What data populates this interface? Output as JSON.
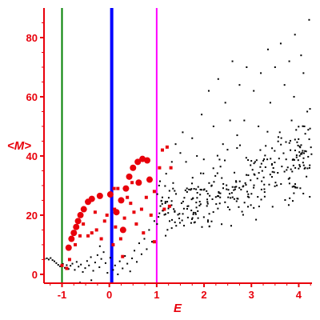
{
  "chart_data": {
    "type": "scatter",
    "title": "",
    "xlabel": "E",
    "ylabel": "<M>",
    "xlim": [
      -1.38,
      4.28
    ],
    "ylim": [
      -3,
      90
    ],
    "xticks": [
      -1,
      0,
      1,
      2,
      3,
      4
    ],
    "yticks": [
      0,
      20,
      40,
      60,
      80
    ],
    "grid": false,
    "legend": "none",
    "colors": {
      "axis": "#e8000b",
      "small_points": "#000000",
      "large_points": "#e8000b",
      "line_green": "#008000",
      "line_blue": "#0000ff",
      "line_magenta": "#ff00ff"
    },
    "vertical_lines": [
      {
        "x": -1.0,
        "color": "#008000",
        "weight": "thin"
      },
      {
        "x": 0.05,
        "color": "#0000ff",
        "weight": "thick"
      },
      {
        "x": 1.0,
        "color": "#ff00ff",
        "weight": "thin"
      }
    ],
    "red_circles": [
      [
        -0.86,
        9.0
      ],
      [
        -0.8,
        12.0
      ],
      [
        -0.75,
        14.0
      ],
      [
        -0.7,
        16.0
      ],
      [
        -0.66,
        18.0
      ],
      [
        -0.61,
        20.0
      ],
      [
        -0.54,
        22.0
      ],
      [
        -0.45,
        24.5
      ],
      [
        -0.37,
        25.5
      ],
      [
        -0.2,
        26.5
      ],
      [
        0.02,
        27.0
      ],
      [
        0.15,
        21.0
      ],
      [
        0.25,
        25.0
      ],
      [
        0.35,
        29.0
      ],
      [
        0.42,
        33.0
      ],
      [
        0.5,
        36.0
      ],
      [
        0.6,
        38.0
      ],
      [
        0.7,
        39.0
      ],
      [
        0.8,
        38.5
      ],
      [
        0.85,
        32.0
      ],
      [
        0.62,
        31.0
      ],
      [
        0.29,
        15.0
      ]
    ],
    "red_squares": [
      [
        -1.0,
        3.0
      ],
      [
        -0.9,
        2.0
      ],
      [
        -0.84,
        5.0
      ],
      [
        -0.72,
        10.0
      ],
      [
        -0.62,
        13.0
      ],
      [
        -0.55,
        17.0
      ],
      [
        -0.45,
        13.0
      ],
      [
        -0.37,
        14.0
      ],
      [
        -0.27,
        15.0
      ],
      [
        -0.17,
        12.0
      ],
      [
        -0.1,
        18.0
      ],
      [
        -0.05,
        20.0
      ],
      [
        0.08,
        10.0
      ],
      [
        0.11,
        22.0
      ],
      [
        0.13,
        16.0
      ],
      [
        0.18,
        29.0
      ],
      [
        0.24,
        12.0
      ],
      [
        0.32,
        19.0
      ],
      [
        0.38,
        26.0
      ],
      [
        0.45,
        24.0
      ],
      [
        0.52,
        21.0
      ],
      [
        0.57,
        17.0
      ],
      [
        0.68,
        22.0
      ],
      [
        0.78,
        26.0
      ],
      [
        0.88,
        20.0
      ],
      [
        0.95,
        28.0
      ],
      [
        1.06,
        36.0
      ],
      [
        1.12,
        42.0
      ],
      [
        1.22,
        43.0
      ],
      [
        1.3,
        36.0
      ],
      [
        0.28,
        6.0
      ],
      [
        0.72,
        14.0
      ],
      [
        0.95,
        11.0
      ],
      [
        1.16,
        22.0
      ],
      [
        1.27,
        23.0
      ],
      [
        0.48,
        31.0
      ],
      [
        0.1,
        29.0
      ],
      [
        -0.3,
        21.0
      ]
    ],
    "black_points": [
      [
        -1.37,
        5.2
      ],
      [
        -1.32,
        5.4
      ],
      [
        -1.28,
        5.0
      ],
      [
        -1.24,
        5.5
      ],
      [
        -1.2,
        4.8
      ],
      [
        -1.16,
        4.4
      ],
      [
        -1.12,
        3.8
      ],
      [
        -1.08,
        3.2
      ],
      [
        -1.04,
        2.7
      ],
      [
        -0.98,
        3.5
      ],
      [
        -0.94,
        2.2
      ],
      [
        -0.9,
        3.1
      ],
      [
        -0.86,
        1.8
      ],
      [
        -0.82,
        2.9
      ],
      [
        -0.78,
        3.6
      ],
      [
        -0.73,
        1.5
      ],
      [
        -0.69,
        4.2
      ],
      [
        -0.65,
        2.6
      ],
      [
        -0.6,
        3.3
      ],
      [
        -0.56,
        0.8
      ],
      [
        -0.51,
        2.1
      ],
      [
        -0.47,
        4.5
      ],
      [
        -0.43,
        3.0
      ],
      [
        -0.39,
        5.8
      ],
      [
        -0.34,
        1.2
      ],
      [
        -0.3,
        4.0
      ],
      [
        -0.25,
        6.5
      ],
      [
        -0.21,
        2.4
      ],
      [
        -0.17,
        5.2
      ],
      [
        -0.12,
        7.5
      ],
      [
        -0.08,
        3.8
      ],
      [
        -0.04,
        0.5
      ],
      [
        0.02,
        5.6
      ],
      [
        0.08,
        1.5
      ],
      [
        0.12,
        3.0
      ],
      [
        0.18,
        0.0
      ],
      [
        0.22,
        4.4
      ],
      [
        0.28,
        2.0
      ],
      [
        0.33,
        6.2
      ],
      [
        0.38,
        3.6
      ],
      [
        0.44,
        1.0
      ],
      [
        0.48,
        5.4
      ],
      [
        0.53,
        8.0
      ],
      [
        0.58,
        4.2
      ],
      [
        0.63,
        10.5
      ],
      [
        0.68,
        6.8
      ],
      [
        0.74,
        12.0
      ],
      [
        0.79,
        8.5
      ],
      [
        0.84,
        15.0
      ],
      [
        0.9,
        11.0
      ],
      [
        0.95,
        18.0
      ],
      [
        -0.62,
        -2.8
      ],
      [
        -0.38,
        -2.0
      ],
      [
        -0.2,
        9.5
      ],
      [
        4.22,
        86.0
      ],
      [
        4.05,
        74.0
      ],
      [
        3.92,
        81.0
      ],
      [
        4.1,
        68.0
      ],
      [
        3.8,
        72.0
      ],
      [
        3.62,
        78.0
      ],
      [
        3.9,
        60.0
      ],
      [
        4.18,
        55.0
      ],
      [
        3.7,
        64.0
      ],
      [
        3.5,
        70.0
      ],
      [
        3.35,
        76.0
      ],
      [
        3.2,
        68.0
      ],
      [
        3.05,
        62.0
      ],
      [
        2.9,
        70.0
      ],
      [
        2.75,
        64.0
      ],
      [
        2.6,
        72.0
      ],
      [
        2.45,
        58.0
      ],
      [
        2.3,
        66.0
      ],
      [
        2.1,
        62.0
      ],
      [
        3.4,
        58.0
      ],
      [
        2.85,
        52.0
      ],
      [
        2.55,
        52.0
      ],
      [
        2.2,
        50.0
      ],
      [
        1.95,
        54.0
      ],
      [
        1.75,
        46.0
      ],
      [
        1.55,
        48.0
      ],
      [
        1.4,
        44.0
      ],
      [
        3.15,
        50.0
      ],
      [
        3.6,
        48.0
      ],
      [
        3.85,
        52.0
      ],
      [
        4.12,
        50.0
      ],
      [
        2.7,
        47.0
      ],
      [
        2.4,
        44.0
      ],
      [
        1.85,
        40.0
      ],
      [
        1.62,
        38.0
      ],
      [
        1.5,
        41.0
      ],
      [
        1.32,
        38.0
      ],
      [
        1.2,
        34.0
      ],
      [
        1.05,
        30.0
      ],
      [
        1.12,
        26.0
      ]
    ],
    "black_cloud": {
      "x_range": [
        1.0,
        4.28
      ],
      "center_y": [
        20.0,
        40.0
      ],
      "spread": [
        6.0,
        10.0
      ],
      "count": 320
    }
  }
}
